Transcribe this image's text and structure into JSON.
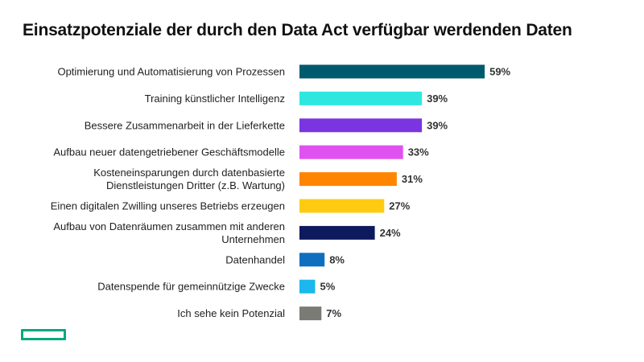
{
  "chart_data": {
    "type": "bar",
    "orientation": "horizontal",
    "title": "Einsatzpotenziale der durch den Data Act verfügbar werdenden Daten",
    "unit": "%",
    "categories": [
      [
        "Optimierung und Automatisierung von Prozessen"
      ],
      [
        "Training künstlicher Intelligenz"
      ],
      [
        "Bessere Zusammenarbeit in der Lieferkette"
      ],
      [
        "Aufbau neuer datengetriebener Geschäftsmodelle"
      ],
      [
        "Kosteneinsparungen durch datenbasierte",
        "Dienstleistungen Dritter (z.B. Wartung)"
      ],
      [
        "Einen digitalen Zwilling unseres Betriebs erzeugen"
      ],
      [
        "Aufbau von Datenräumen zusammen mit anderen",
        "Unternehmen"
      ],
      [
        "Datenhandel"
      ],
      [
        "Datenspende für gemeinnützige Zwecke"
      ],
      [
        "Ich sehe kein Potenzial"
      ]
    ],
    "values": [
      59,
      39,
      39,
      33,
      31,
      27,
      24,
      8,
      5,
      7
    ],
    "value_labels": [
      "59%",
      "39%",
      "39%",
      "33%",
      "31%",
      "27%",
      "24%",
      "8%",
      "5%",
      "7%"
    ],
    "colors": [
      "#005a6e",
      "#2ee8e0",
      "#7a35e0",
      "#e052f0",
      "#ff8500",
      "#ffcb12",
      "#0d1a5e",
      "#0f6fbf",
      "#1ab8ec",
      "#7b7b76"
    ],
    "xlim": [
      0,
      100
    ],
    "grid": false,
    "legend": "none"
  },
  "logo": {
    "color": "#01a982"
  }
}
